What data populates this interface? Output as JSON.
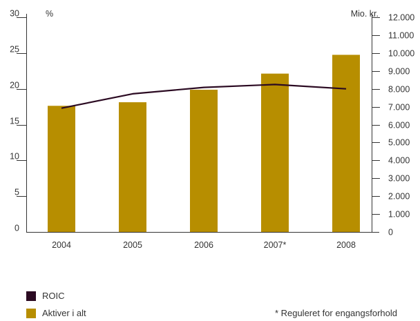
{
  "chart_data": {
    "type": "bar+line",
    "categories": [
      "2004",
      "2005",
      "2006",
      "2007*",
      "2008"
    ],
    "series": [
      {
        "name": "Aktiver i alt",
        "type": "bar",
        "axis": "right",
        "color": "#b78e00",
        "values": [
          7050,
          7250,
          7950,
          8850,
          9900
        ]
      },
      {
        "name": "ROIC",
        "type": "line",
        "axis": "left",
        "color": "#2b0a22",
        "values": [
          17.3,
          19.3,
          20.2,
          20.6,
          20.0
        ]
      }
    ],
    "left_axis": {
      "unit": "%",
      "ylim": [
        0,
        30
      ],
      "ticks": [
        "0",
        "5",
        "10",
        "15",
        "20",
        "25",
        "30"
      ]
    },
    "right_axis": {
      "unit": "Mio. kr.",
      "ylim": [
        0,
        12000
      ],
      "ticks": [
        "0",
        "1.000",
        "2.000",
        "3.000",
        "4.000",
        "5.000",
        "6.000",
        "7.000",
        "8.000",
        "9.000",
        "10.000",
        "11.000",
        "12.000"
      ]
    },
    "grid": false,
    "legend_position": "bottom-left",
    "footnote": "* Reguleret for engangsforhold"
  }
}
